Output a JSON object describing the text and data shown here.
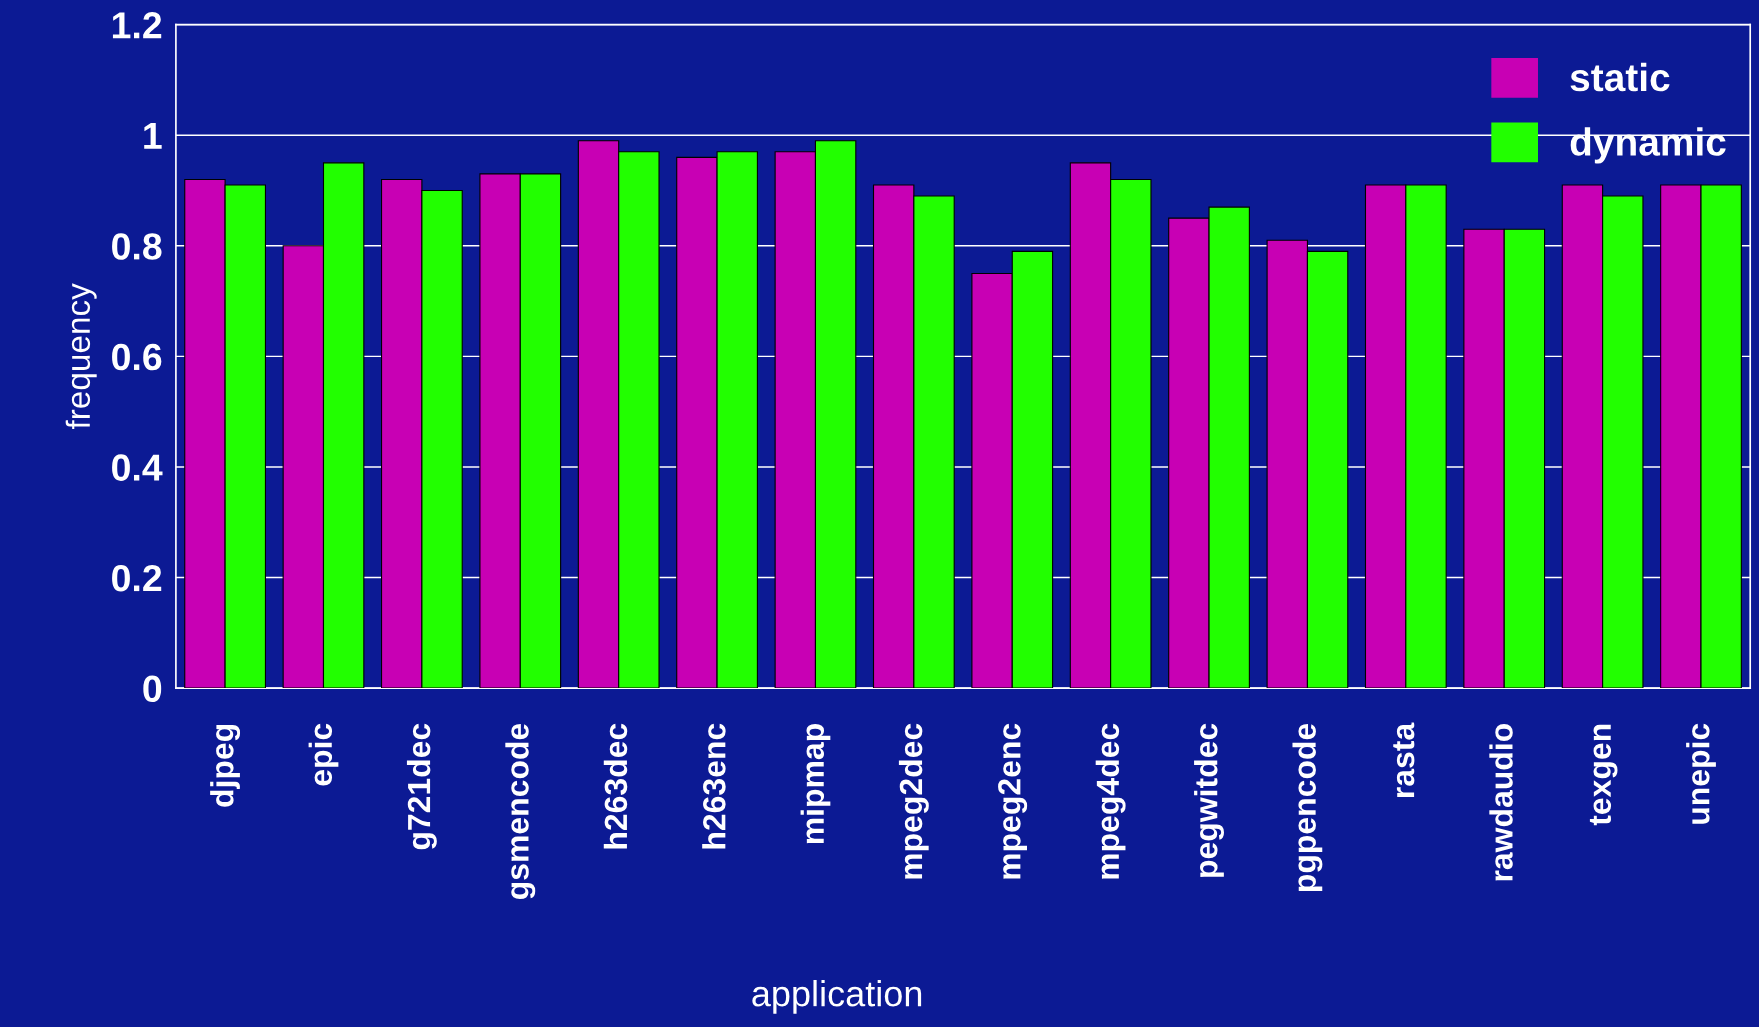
{
  "chart_data": {
    "type": "bar",
    "xlabel": "application",
    "ylabel": "frequency",
    "categories": [
      "djpeg",
      "epic",
      "g721dec",
      "gsmencode",
      "h263dec",
      "h263enc",
      "mipmap",
      "mpeg2dec",
      "mpeg2enc",
      "mpeg4dec",
      "pegwitdec",
      "pgpencode",
      "rasta",
      "rawdaudio",
      "texgen",
      "unepic"
    ],
    "series": [
      {
        "name": "static",
        "color": "#c800b4",
        "values": [
          0.92,
          0.8,
          0.92,
          0.93,
          0.99,
          0.96,
          0.97,
          0.91,
          0.75,
          0.95,
          0.85,
          0.81,
          0.91,
          0.83,
          0.91,
          0.91
        ]
      },
      {
        "name": "dynamic",
        "color": "#22ff00",
        "values": [
          0.91,
          0.95,
          0.9,
          0.93,
          0.97,
          0.97,
          0.99,
          0.89,
          0.79,
          0.92,
          0.87,
          0.79,
          0.91,
          0.83,
          0.89,
          0.91
        ]
      }
    ],
    "ylim": [
      0,
      1.2
    ],
    "yticks": [
      0,
      0.2,
      0.4,
      0.6,
      0.8,
      1,
      1.2
    ],
    "grid": "y",
    "legend": "top right"
  }
}
